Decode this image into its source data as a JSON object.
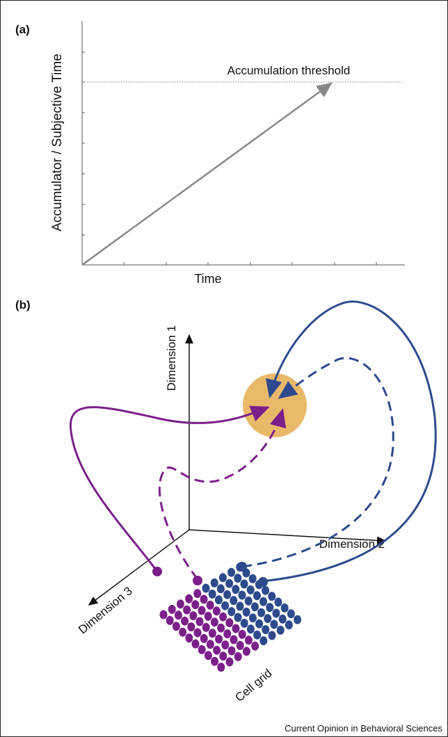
{
  "panel_a": {
    "label": "(a)",
    "y_axis_label": "Accumulator / Subjective Time",
    "x_axis_label": "Time",
    "threshold_label": "Accumulation threshold"
  },
  "panel_b": {
    "label": "(b)",
    "axis_1": "Dimension 1",
    "axis_2": "Dimension 2",
    "axis_3": "Dimension 3",
    "grid_label": "Cell grid"
  },
  "footer": "Current Opinion in Behavioral Sciences"
}
